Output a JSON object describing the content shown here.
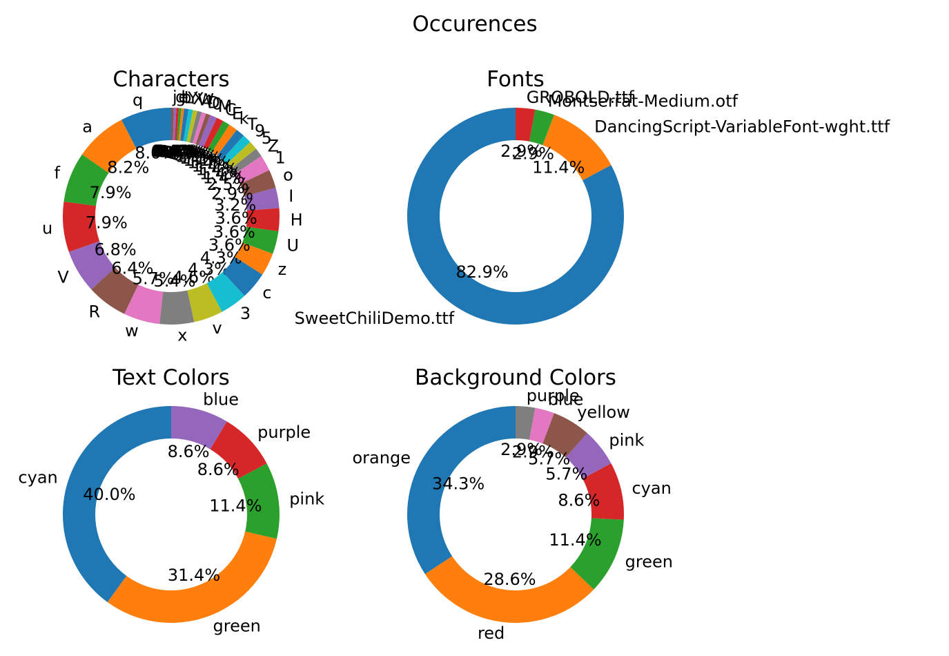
{
  "figure": {
    "title": "Occurences"
  },
  "chart_data": [
    {
      "type": "pie",
      "title": "Characters",
      "labels": [
        "q",
        "a",
        "f",
        "u",
        "V",
        "R",
        "w",
        "x",
        "v",
        "3",
        "c",
        "z",
        "U",
        "H",
        "I",
        "o",
        "1",
        "Z",
        "5",
        "9",
        "T",
        "k",
        "E",
        "C",
        "M",
        "0",
        "D",
        "4",
        "W",
        "X",
        "Y",
        "L",
        "b",
        "e",
        "g",
        "j"
      ],
      "values": [
        8.0,
        8.2,
        7.9,
        7.9,
        6.8,
        6.4,
        5.7,
        5.4,
        4.6,
        4.3,
        4.3,
        3.6,
        3.6,
        3.6,
        3.2,
        2.9,
        2.5,
        1.4,
        1.4,
        1.4,
        1.4,
        1.4,
        1.1,
        1.1,
        1.1,
        0.7,
        0.7,
        0.7,
        0.7,
        0.7,
        0.7,
        0.4,
        0.4,
        0.4,
        0.4,
        0.4
      ],
      "pct_labels": [
        "8.0%",
        "8.2%",
        "7.9%",
        "7.9%",
        "6.8%",
        "6.4%",
        "5.7%",
        "5.4%",
        "4.6%",
        "4.3%",
        "4.3%",
        "3.6%",
        "3.6%",
        "3.6%",
        "3.2%",
        "2.9%",
        "2.5%",
        "1.4%",
        "1.4%",
        "1.4%",
        "1.4%",
        "1.4%",
        "1.1%",
        "1.1%",
        "1.1%",
        "0.7%",
        "0.7%",
        "0.7%",
        "0.7%",
        "0.7%",
        "0.7%",
        "0.4%",
        "0.4%",
        "0.4%",
        "0.4%",
        "0.4%"
      ]
    },
    {
      "type": "pie",
      "title": "Fonts",
      "labels": [
        "SweetChiliDemo.ttf",
        "DancingScript-VariableFont-wght.ttf",
        "Montserrat-Medium.otf",
        "GROBOLD.ttf"
      ],
      "values": [
        82.9,
        11.4,
        2.9,
        2.9
      ],
      "pct_labels": [
        "82.9%",
        "11.4%",
        "2.9%",
        "2.9%"
      ]
    },
    {
      "type": "pie",
      "title": "Text Colors",
      "labels": [
        "cyan",
        "green",
        "pink",
        "purple",
        "blue"
      ],
      "values": [
        40.0,
        31.4,
        11.4,
        8.6,
        8.6
      ],
      "pct_labels": [
        "40.0%",
        "31.4%",
        "11.4%",
        "8.6%",
        "8.6%"
      ]
    },
    {
      "type": "pie",
      "title": "Background Colors",
      "labels": [
        "orange",
        "red",
        "green",
        "cyan",
        "pink",
        "yellow",
        "blue",
        "purple"
      ],
      "values": [
        34.3,
        28.6,
        11.4,
        8.6,
        5.7,
        5.7,
        2.9,
        2.9
      ],
      "pct_labels": [
        "34.3%",
        "28.6%",
        "11.4%",
        "8.6%",
        "5.7%",
        "5.7%",
        "2.9%",
        "2.9%"
      ]
    }
  ],
  "colors": [
    "#1f77b4",
    "#ff7f0e",
    "#2ca02c",
    "#d62728",
    "#9467bd",
    "#8c564b",
    "#e377c2",
    "#7f7f7f",
    "#bcbd22",
    "#17becf"
  ]
}
